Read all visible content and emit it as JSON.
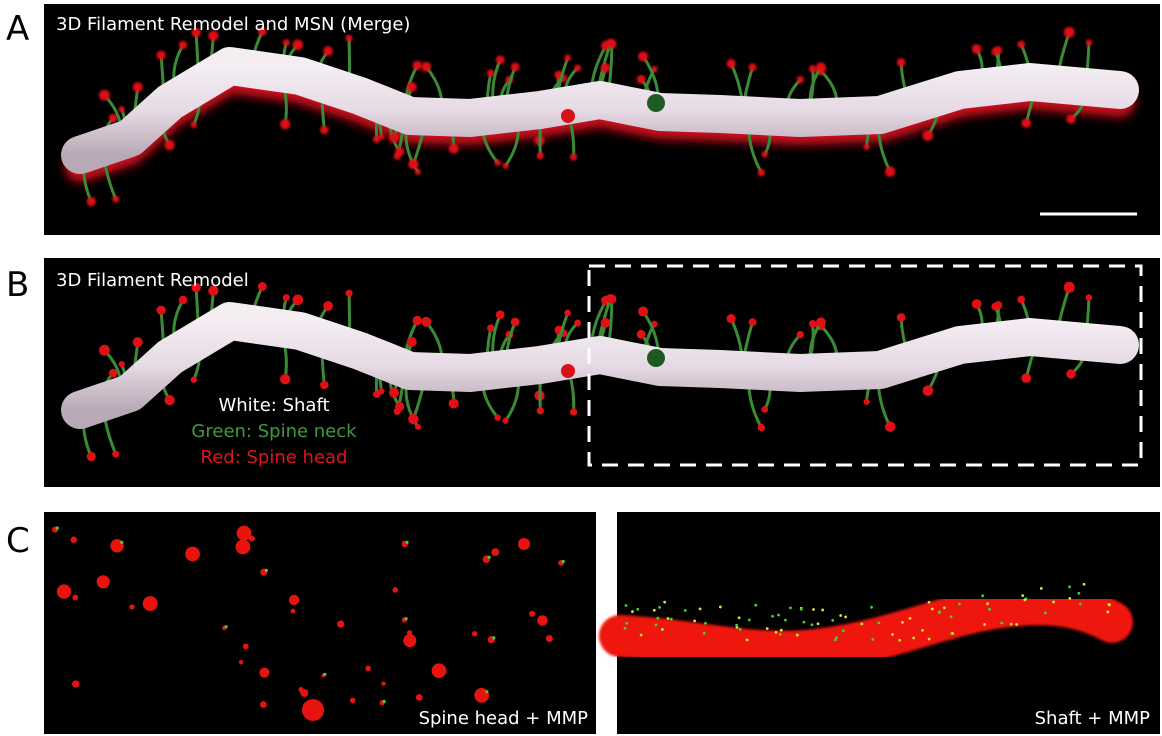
{
  "panels": [
    {
      "label": "A",
      "title": "3D Filament Remodel and MSN (Merge)"
    },
    {
      "label": "B",
      "title": "3D Filament Remodel",
      "legend": [
        "White: Shaft",
        "Green: Spine neck",
        "Red: Spine head"
      ]
    },
    {
      "label": "C",
      "captions": [
        "Spine head + MMP",
        "Shaft + MMP"
      ]
    }
  ]
}
